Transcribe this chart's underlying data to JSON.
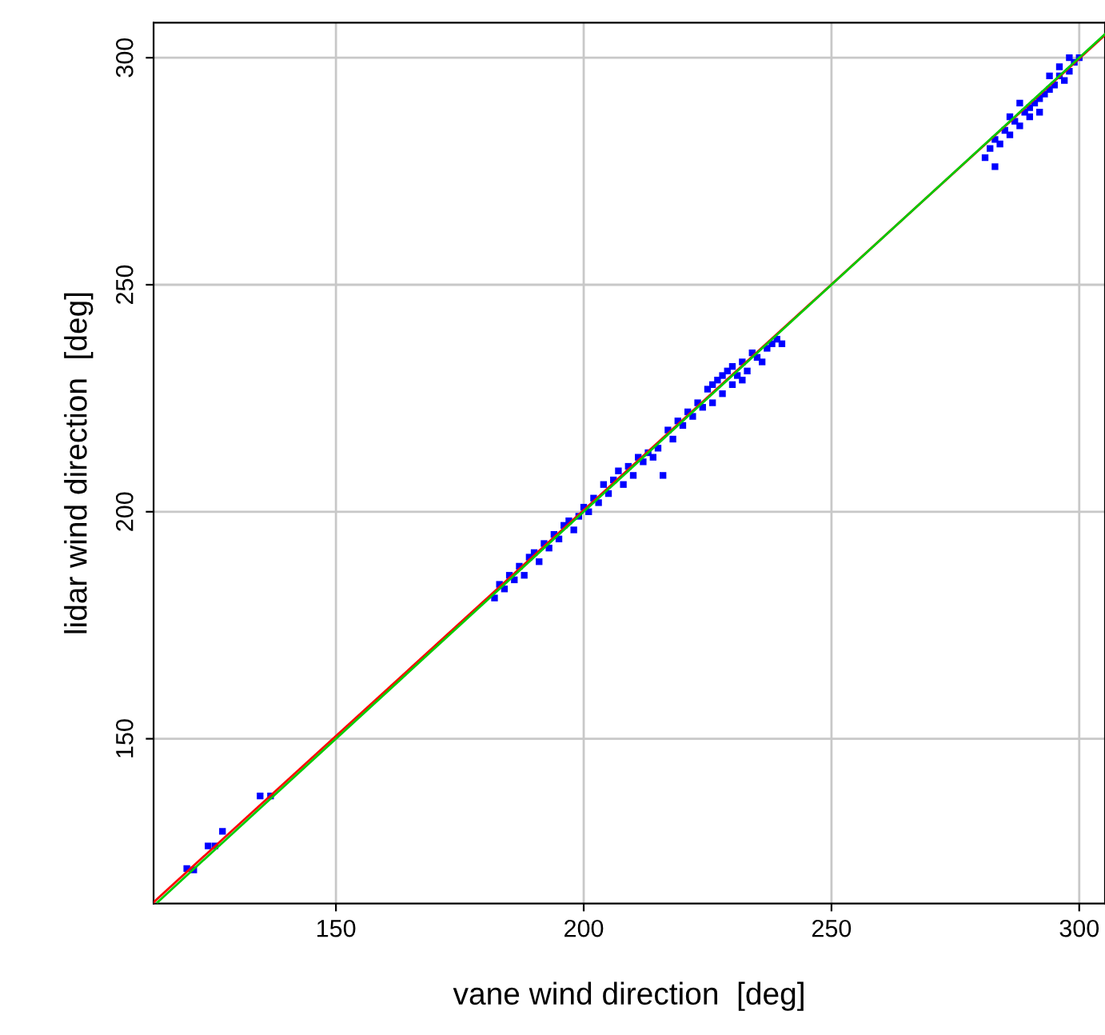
{
  "chart_data": {
    "type": "scatter",
    "xlabel": "vane wind direction  [deg]",
    "ylabel": "lidar wind direction  [deg]",
    "xlim": [
      113.2,
      305.2
    ],
    "ylim": [
      113.7,
      307.7
    ],
    "xticks": [
      150,
      200,
      250,
      300
    ],
    "yticks": [
      150,
      200,
      250,
      300
    ],
    "grid": true,
    "series": [
      {
        "marker": "square",
        "color": "#0000ff",
        "x": [
          119.9,
          121.3,
          124.2,
          125.6,
          127.1,
          134.7,
          136.8,
          182,
          183,
          184,
          185,
          186,
          187,
          188,
          189,
          190,
          191,
          192,
          193,
          194,
          195,
          196,
          197,
          198,
          199,
          200,
          201,
          202,
          203,
          204,
          205,
          206,
          207,
          208,
          209,
          210,
          211,
          212,
          213,
          214,
          215,
          216,
          217,
          218,
          219,
          220,
          221,
          222,
          223,
          224,
          225,
          226,
          227,
          228,
          229,
          230,
          231,
          232,
          233,
          234,
          235,
          236,
          237,
          238,
          239,
          240,
          228,
          230,
          232,
          226,
          281,
          282,
          283,
          284,
          285,
          286,
          287,
          288,
          289,
          290,
          291,
          292,
          293,
          294,
          295,
          296,
          297,
          298,
          299,
          300,
          283,
          288,
          292,
          296,
          290,
          294,
          298,
          286
        ],
        "values": [
          121.4,
          121.1,
          126.4,
          126.4,
          129.6,
          137.4,
          137.4,
          181,
          184,
          183,
          186,
          185,
          188,
          186,
          190,
          191,
          189,
          193,
          192,
          195,
          194,
          197,
          198,
          196,
          199,
          201,
          200,
          203,
          202,
          206,
          204,
          207,
          209,
          206,
          210,
          208,
          212,
          211,
          213,
          212,
          214,
          208,
          218,
          216,
          220,
          219,
          222,
          221,
          224,
          223,
          227,
          224,
          229,
          226,
          231,
          228,
          230,
          233,
          231,
          235,
          234,
          233,
          236,
          237,
          238,
          237,
          230,
          232,
          229,
          228,
          278,
          280,
          282,
          281,
          284,
          283,
          286,
          285,
          288,
          289,
          290,
          291,
          292,
          293,
          294,
          296,
          295,
          297,
          299,
          300,
          276,
          290,
          288,
          298,
          287,
          296,
          300,
          287
        ]
      },
      {
        "type": "line",
        "marker": "none",
        "color": "#ff0000",
        "x": [
          113.2,
          305.2
        ],
        "values": [
          114.0,
          305.0
        ]
      },
      {
        "type": "line",
        "marker": "none",
        "color": "#00cc00",
        "x": [
          114.0,
          305.2
        ],
        "values": [
          114.0,
          305.2
        ]
      }
    ]
  }
}
